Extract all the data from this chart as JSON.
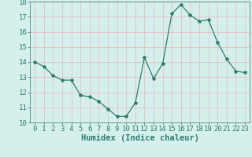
{
  "x": [
    0,
    1,
    2,
    3,
    4,
    5,
    6,
    7,
    8,
    9,
    10,
    11,
    12,
    13,
    14,
    15,
    16,
    17,
    18,
    19,
    20,
    21,
    22,
    23
  ],
  "y": [
    14.0,
    13.7,
    13.1,
    12.8,
    12.8,
    11.8,
    11.7,
    11.4,
    10.9,
    10.4,
    10.4,
    11.3,
    14.3,
    12.9,
    13.9,
    17.2,
    17.8,
    17.1,
    16.7,
    16.8,
    15.3,
    14.2,
    13.4,
    13.3
  ],
  "xlim": [
    -0.5,
    23.5
  ],
  "ylim": [
    10,
    18
  ],
  "yticks": [
    10,
    11,
    12,
    13,
    14,
    15,
    16,
    17,
    18
  ],
  "xticks": [
    0,
    1,
    2,
    3,
    4,
    5,
    6,
    7,
    8,
    9,
    10,
    11,
    12,
    13,
    14,
    15,
    16,
    17,
    18,
    19,
    20,
    21,
    22,
    23
  ],
  "xlabel": "Humidex (Indice chaleur)",
  "line_color": "#2d7d6e",
  "marker": "*",
  "marker_size": 3,
  "bg_color": "#d5efec",
  "grid_color": "#e8b8b8",
  "xlabel_fontsize": 7.5,
  "tick_fontsize": 6.5,
  "line_width": 0.9
}
